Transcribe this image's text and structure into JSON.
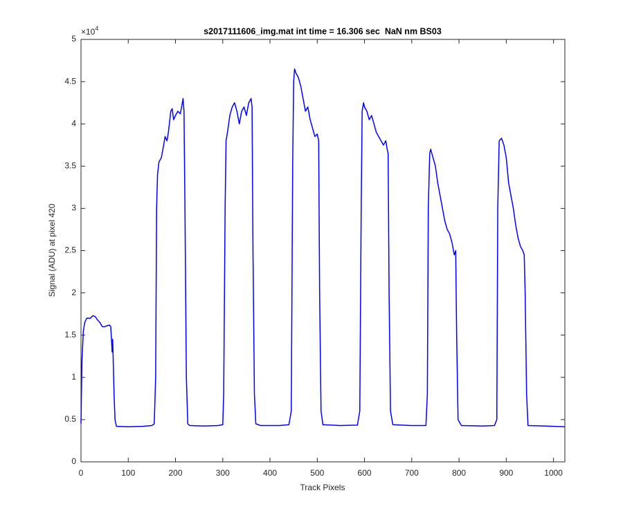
{
  "chart_data": {
    "type": "line",
    "title": "s2017111606_img.mat int time = 16.306 sec  NaN nm BS03",
    "x_label": "Track Pixels",
    "y_label": "Signal (ADU) at pixel 420",
    "y_multiplier": {
      "base": "×10",
      "exponent": "4"
    },
    "xlim": [
      0,
      1024
    ],
    "xticks": [
      0,
      100,
      200,
      300,
      400,
      500,
      600,
      700,
      800,
      900,
      1000
    ],
    "ylim": [
      0,
      50000
    ],
    "yticks": [
      0,
      {
        "value": 5000,
        "label": "0.5"
      },
      {
        "value": 10000,
        "label": "1"
      },
      {
        "value": 15000,
        "label": "1.5"
      },
      {
        "value": 20000,
        "label": "2"
      },
      {
        "value": 25000,
        "label": "2.5"
      },
      {
        "value": 30000,
        "label": "3"
      },
      {
        "value": 35000,
        "label": "3.5"
      },
      {
        "value": 40000,
        "label": "4"
      },
      {
        "value": 45000,
        "label": "4.5"
      },
      {
        "value": 50000,
        "label": "5"
      }
    ],
    "grid": false,
    "color": "#0000ff",
    "x": [
      0,
      2,
      5,
      8,
      12,
      20,
      25,
      30,
      35,
      40,
      45,
      50,
      55,
      60,
      63,
      65,
      66,
      67,
      68,
      70,
      72,
      75,
      100,
      130,
      150,
      155,
      158,
      160,
      162,
      165,
      170,
      175,
      178,
      182,
      185,
      190,
      193,
      196,
      200,
      205,
      210,
      213,
      216,
      218,
      220,
      223,
      226,
      230,
      260,
      290,
      300,
      302,
      305,
      307,
      310,
      315,
      320,
      325,
      330,
      335,
      340,
      345,
      350,
      355,
      360,
      362,
      364,
      367,
      370,
      380,
      420,
      440,
      445,
      448,
      450,
      452,
      455,
      460,
      465,
      470,
      475,
      480,
      485,
      490,
      495,
      500,
      503,
      505,
      508,
      512,
      550,
      585,
      590,
      593,
      595,
      598,
      600,
      605,
      610,
      615,
      620,
      625,
      630,
      635,
      640,
      645,
      648,
      650,
      652,
      655,
      660,
      700,
      730,
      733,
      735,
      738,
      740,
      745,
      750,
      755,
      760,
      765,
      770,
      775,
      780,
      785,
      790,
      793,
      795,
      798,
      805,
      850,
      875,
      880,
      882,
      885,
      890,
      895,
      900,
      905,
      910,
      915,
      920,
      925,
      930,
      935,
      938,
      940,
      943,
      946,
      980,
      1000,
      1024
    ],
    "values": [
      4500,
      12000,
      15500,
      16500,
      17000,
      17000,
      17300,
      17200,
      16800,
      16500,
      16000,
      16000,
      16100,
      16200,
      16000,
      14000,
      13000,
      14500,
      12500,
      8000,
      5000,
      4200,
      4150,
      4200,
      4300,
      4500,
      10000,
      30000,
      34000,
      35500,
      36000,
      37500,
      38500,
      38000,
      39000,
      41500,
      41800,
      40500,
      41000,
      41500,
      41200,
      42000,
      43000,
      41500,
      30000,
      10000,
      4500,
      4300,
      4250,
      4300,
      4400,
      8000,
      30000,
      38000,
      39000,
      41000,
      42000,
      42500,
      41500,
      40000,
      41500,
      42000,
      41000,
      42500,
      43000,
      42000,
      25000,
      8000,
      4500,
      4300,
      4300,
      4400,
      6000,
      35000,
      45000,
      46500,
      46000,
      45500,
      44500,
      43000,
      41500,
      42000,
      40500,
      39500,
      38500,
      38800,
      38000,
      20000,
      6000,
      4400,
      4300,
      4350,
      6000,
      30000,
      41500,
      42500,
      42000,
      41500,
      40500,
      41000,
      40000,
      39000,
      38500,
      38000,
      37500,
      38000,
      37000,
      36500,
      20000,
      6000,
      4400,
      4300,
      4300,
      8000,
      30000,
      36500,
      37000,
      36000,
      35000,
      33000,
      31500,
      30000,
      28500,
      27500,
      27000,
      26000,
      24500,
      25000,
      15000,
      5000,
      4300,
      4250,
      4300,
      5000,
      30000,
      38000,
      38300,
      37500,
      36000,
      33000,
      31500,
      30000,
      28000,
      26500,
      25500,
      25000,
      24500,
      20000,
      8000,
      4300,
      4250,
      4200,
      4150
    ]
  }
}
